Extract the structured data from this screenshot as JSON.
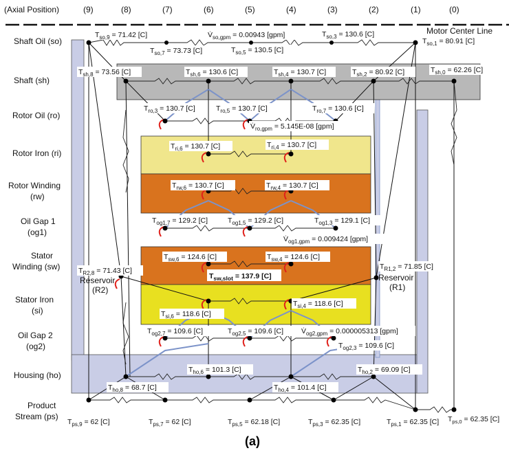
{
  "header": {
    "axial_label": "(Axial Position)",
    "positions": [
      "(9)",
      "(8)",
      "(7)",
      "(6)",
      "(5)",
      "(4)",
      "(3)",
      "(2)",
      "(1)",
      "(0)"
    ]
  },
  "motor_center_line": "Motor Center Line",
  "rows": [
    {
      "label": "Shaft Oil (so)"
    },
    {
      "label": "Shaft (sh)"
    },
    {
      "label": "Rotor Oil (ro)"
    },
    {
      "label": "Rotor Iron (ri)"
    },
    {
      "label": "Rotor Winding",
      "sub": "(rw)"
    },
    {
      "label": "Oil Gap 1",
      "sub": "(og1)"
    },
    {
      "label": "Stator",
      "sub": "Winding (sw)"
    },
    {
      "label": "Stator Iron",
      "sub": "(si)"
    },
    {
      "label": "Oil Gap 2",
      "sub": "(og2)"
    },
    {
      "label": "Housing (ho)"
    },
    {
      "label": "Product",
      "sub": "Stream (ps)"
    }
  ],
  "nodes": {
    "so9": {
      "base": "T",
      "sub": "so,9",
      "val": " = 71.42 [C]"
    },
    "so7": {
      "base": "T",
      "sub": "so,7",
      "val": " = 73.73 [C]"
    },
    "sogpm": {
      "base": "V̇",
      "sub": "so,gpm",
      "val": " = 0.00943 [gpm]"
    },
    "so5": {
      "base": "T",
      "sub": "so,5",
      "val": " = 130.5 [C]"
    },
    "so3": {
      "base": "T",
      "sub": "so,3",
      "val": " = 130.6 [C]"
    },
    "so1": {
      "base": "T",
      "sub": "so,1",
      "val": " = 80.91 [C]"
    },
    "sh8": {
      "base": "T",
      "sub": "sh,8",
      "val": " = 73.56 [C]"
    },
    "sh6": {
      "base": "T",
      "sub": "sh,6",
      "val": " = 130.6 [C]"
    },
    "sh4": {
      "base": "T",
      "sub": "sh,4",
      "val": " = 130.7 [C]"
    },
    "sh2": {
      "base": "T",
      "sub": "sh,2",
      "val": " = 80.92 [C]"
    },
    "sh0": {
      "base": "T",
      "sub": "sh,0",
      "val": " = 62.26 [C]"
    },
    "ro3": {
      "base": "T",
      "sub": "ro,3",
      "val": " = 130.7 [C]"
    },
    "ro5": {
      "base": "T",
      "sub": "ro,5",
      "val": " = 130.7 [C]"
    },
    "ro7": {
      "base": "T",
      "sub": "ro,7",
      "val": " = 130.6 [C]"
    },
    "rogpm": {
      "base": "V̇",
      "sub": "ro,gpm",
      "val": " = 5.145E-08 [gpm]"
    },
    "ri6": {
      "base": "T",
      "sub": "ri,6",
      "val": " = 130.7 [C]"
    },
    "ri4": {
      "base": "T",
      "sub": "ri,4",
      "val": " = 130.7 [C]"
    },
    "rw6": {
      "base": "T",
      "sub": "rw,6",
      "val": " = 130.7 [C]"
    },
    "rw4": {
      "base": "T",
      "sub": "rw,4",
      "val": " = 130.7 [C]"
    },
    "og17": {
      "base": "T",
      "sub": "og1,7",
      "val": " = 129.2 [C]"
    },
    "og15": {
      "base": "T",
      "sub": "og1,5",
      "val": " = 129.2 [C]"
    },
    "og13": {
      "base": "T",
      "sub": "og1,3",
      "val": " = 129.1 [C]"
    },
    "og1gpm": {
      "base": "V̇",
      "sub": "og1,gpm",
      "val": " = 0.009424 [gpm]"
    },
    "sw6": {
      "base": "T",
      "sub": "sw,6",
      "val": " = 124.6 [C]"
    },
    "sw4": {
      "base": "T",
      "sub": "sw,4",
      "val": " = 124.6 [C]"
    },
    "swslot": {
      "base": "T",
      "sub": "sw,slot",
      "val": " = 137.9 [C]"
    },
    "r28": {
      "base": "T",
      "sub": "R2,8",
      "val": " = 71.43 [C]"
    },
    "r12": {
      "base": "T",
      "sub": "R1,2",
      "val": " = 71.85 [C]"
    },
    "si6": {
      "base": "T",
      "sub": "si,6",
      "val": " = 118.6 [C]"
    },
    "si4": {
      "base": "T",
      "sub": "si,4",
      "val": " = 118.6 [C]"
    },
    "og27": {
      "base": "T",
      "sub": "og2,7",
      "val": " = 109.6 [C]"
    },
    "og25": {
      "base": "T",
      "sub": "og2,5",
      "val": " = 109.6 [C]"
    },
    "og2gpm": {
      "base": "V̇",
      "sub": "og2,gpm",
      "val": " = 0.000005313 [gpm]"
    },
    "og23": {
      "base": "T",
      "sub": "og2,3",
      "val": " = 109.6 [C]"
    },
    "ho6": {
      "base": "T",
      "sub": "ho,6",
      "val": " = 101.3 [C]"
    },
    "ho2": {
      "base": "T",
      "sub": "ho,2",
      "val": " = 69.09 [C]"
    },
    "ho8": {
      "base": "T",
      "sub": "ho,8",
      "val": " = 68.7 [C]"
    },
    "ho4": {
      "base": "T",
      "sub": "ho,4",
      "val": " = 101.4 [C]"
    },
    "ps9": {
      "base": "T",
      "sub": "ps,9",
      "val": " = 62 [C]"
    },
    "ps7": {
      "base": "T",
      "sub": "ps,7",
      "val": " = 62 [C]"
    },
    "ps5": {
      "base": "T",
      "sub": "ps,5",
      "val": " = 62.18 [C]"
    },
    "ps3": {
      "base": "T",
      "sub": "ps,3",
      "val": " = 62.35 [C]"
    },
    "ps1": {
      "base": "T",
      "sub": "ps,1",
      "val": " = 62.35 [C]"
    },
    "ps0": {
      "base": "T",
      "sub": "ps,0",
      "val": " = 62.35 [C]"
    }
  },
  "reservoir_r2": {
    "label": "Reservoir",
    "sub": "(R2)"
  },
  "reservoir_r1": {
    "label": "Reservoir",
    "sub": "(R1)"
  },
  "caption": "(a)",
  "colors": {
    "shaft": "#b8b8b8",
    "rotor_iron": "#f0e68c",
    "rotor_winding": "#d9731e",
    "stator_winding": "#d9731e",
    "stator_iron": "#e8e020",
    "housing": "#c9cde6",
    "flow_blue": "#7c93c9",
    "heat_red": "#e0201a"
  }
}
